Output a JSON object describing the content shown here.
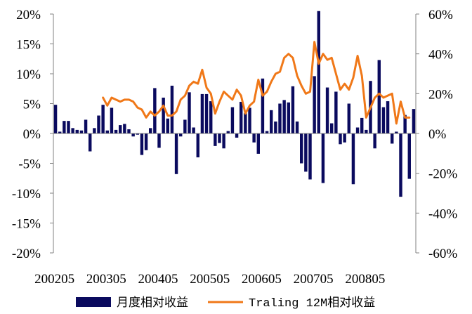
{
  "chart_data": {
    "type": "bar",
    "title": "",
    "xlabel": "",
    "ylabel": "",
    "ylim_left": [
      -20,
      20
    ],
    "ylim_right": [
      -60,
      60
    ],
    "left_ticks": [
      "20%",
      "15%",
      "10%",
      "5%",
      "0%",
      "-5%",
      "-10%",
      "-15%",
      "-20%"
    ],
    "right_ticks": [
      "60%",
      "40%",
      "20%",
      "0%",
      "-20%",
      "-40%",
      "-60%"
    ],
    "x_tick_labels": [
      "200205",
      "200305",
      "200405",
      "200505",
      "200605",
      "200705",
      "200805"
    ],
    "grid": false,
    "legend_position": "bottom",
    "colors": {
      "bar": "#0a0a5e",
      "line": "#f07818",
      "axis": "#808080"
    },
    "series": [
      {
        "name": "月度相对收益",
        "type": "bar",
        "axis": "left",
        "values": [
          4.8,
          0.3,
          2.1,
          2.1,
          0.9,
          0.6,
          0.5,
          2.3,
          -3.0,
          0.9,
          3.0,
          4.8,
          0.5,
          4.3,
          0.6,
          1.4,
          1.6,
          0.7,
          -0.5,
          -0.2,
          -3.6,
          -2.8,
          0.9,
          7.6,
          -2.4,
          6.0,
          2.5,
          8.0,
          -6.8,
          -0.5,
          2.3,
          6.9,
          1.0,
          -4.0,
          6.6,
          6.6,
          5.4,
          -2.1,
          -1.6,
          -2.5,
          0.4,
          4.4,
          -0.7,
          5.3,
          3.4,
          4.3,
          -1.5,
          -3.4,
          9.2,
          0.4,
          3.9,
          2.0,
          5.0,
          5.6,
          5.2,
          7.9,
          2.0,
          -5.0,
          -6.4,
          -7.7,
          9.6,
          20.5,
          -8.3,
          7.7,
          1.7,
          7.0,
          -1.8,
          -1.5,
          5.0,
          -8.5,
          1.0,
          2.6,
          0.6,
          8.8,
          -2.5,
          12.3,
          4.4,
          5.4,
          -1.7,
          0.3,
          -10.6,
          3.1,
          -7.6,
          4.1
        ]
      },
      {
        "name": "Traling 12M相对收益",
        "type": "line",
        "axis": "right",
        "start_index": 11,
        "values": [
          18,
          14,
          18,
          17,
          16,
          17,
          17,
          16,
          13,
          12,
          8,
          11,
          9,
          11,
          14,
          9,
          9,
          11,
          17,
          19,
          24,
          26,
          25,
          32,
          23,
          20,
          10,
          16,
          21,
          19,
          17,
          22,
          19,
          10,
          14,
          16,
          27,
          19,
          21,
          26,
          30,
          31,
          38,
          40,
          38,
          29,
          24,
          20,
          21,
          46,
          35,
          40,
          37,
          38,
          30,
          22,
          25,
          22,
          28,
          39,
          29,
          8,
          13,
          18,
          20,
          18,
          19,
          20,
          5,
          16,
          8,
          8
        ]
      }
    ]
  }
}
